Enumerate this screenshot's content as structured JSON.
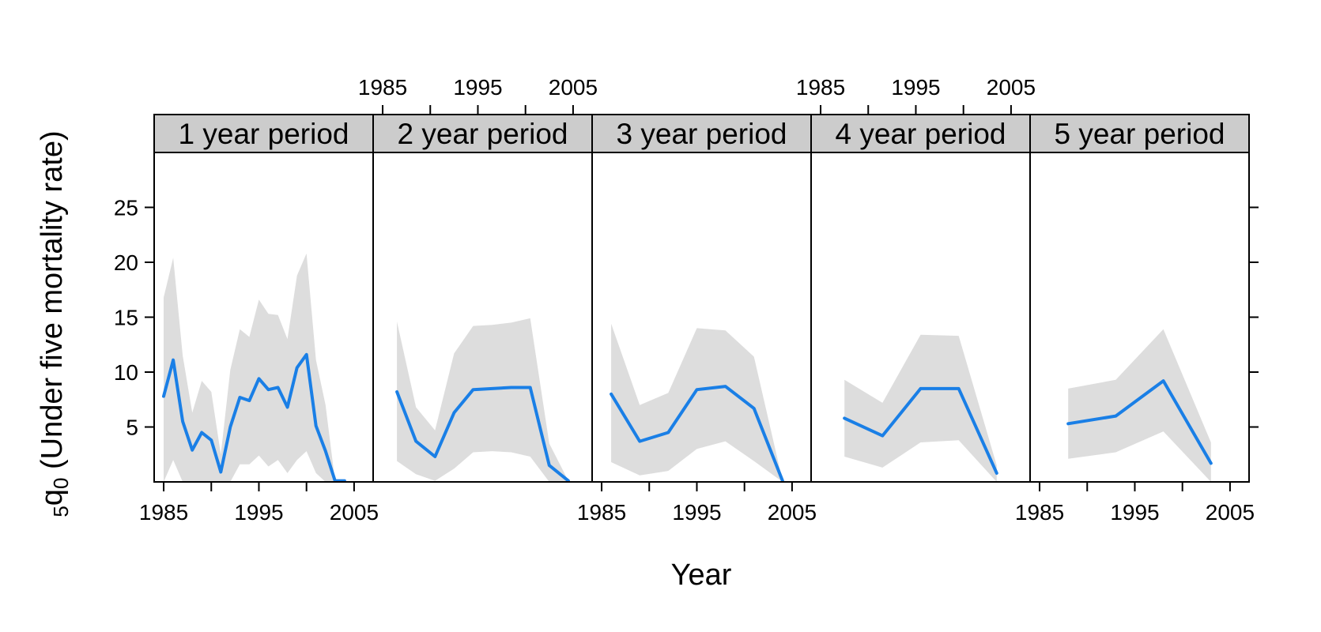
{
  "chart_data": {
    "type": "line",
    "xlabel": "Year",
    "ylabel": {
      "prefix_sub": "5",
      "main": "q",
      "main_sub": "0",
      "rest": " (Under five mortality rate)"
    },
    "xlim": [
      1984,
      2007
    ],
    "ylim": [
      0,
      30
    ],
    "xticks": [
      1985,
      1990,
      1995,
      2000,
      2005
    ],
    "xtick_labels": [
      "1985",
      "1995",
      "2005"
    ],
    "yticks": [
      5,
      10,
      15,
      20,
      25
    ],
    "line_color": "#1a7fe6",
    "band_color": "#dddddd",
    "strip_color": "#cccccc",
    "panels": [
      {
        "strip": "1 year period",
        "x": [
          1985,
          1986,
          1987,
          1988,
          1989,
          1990,
          1991,
          1992,
          1993,
          1994,
          1995,
          1996,
          1997,
          1998,
          1999,
          2000,
          2001,
          2002,
          2003,
          2004
        ],
        "y": [
          7.8,
          11.1,
          5.5,
          2.9,
          4.5,
          3.8,
          0.9,
          5.0,
          7.7,
          7.4,
          9.4,
          8.4,
          8.6,
          6.8,
          10.4,
          11.6,
          5.1,
          2.8,
          0.1,
          0.1
        ],
        "lower": [
          0,
          2,
          0,
          0,
          0,
          0,
          0,
          0,
          1.6,
          1.6,
          2.4,
          1.4,
          2.0,
          0.8,
          2.0,
          2.8,
          0.8,
          0,
          0,
          0
        ],
        "upper": [
          16.8,
          20.4,
          11.5,
          6.3,
          9.2,
          8.2,
          2.5,
          10.2,
          13.9,
          13.2,
          16.6,
          15.3,
          15.2,
          13.0,
          18.8,
          20.8,
          11.1,
          7.0,
          0.1,
          0.1
        ]
      },
      {
        "strip": "2 year period",
        "x": [
          1986.5,
          1988.5,
          1990.5,
          1992.5,
          1994.5,
          1996.5,
          1998.5,
          2000.5,
          2002.5,
          2004.5
        ],
        "y": [
          8.2,
          3.7,
          2.3,
          6.3,
          8.4,
          8.5,
          8.6,
          8.6,
          1.5,
          0.1
        ],
        "lower": [
          1.9,
          0.7,
          0.1,
          1.2,
          2.7,
          2.8,
          2.7,
          2.3,
          0,
          0
        ],
        "upper": [
          14.6,
          6.8,
          4.7,
          11.7,
          14.2,
          14.3,
          14.5,
          14.9,
          3.5,
          0.1
        ]
      },
      {
        "strip": "3 year period",
        "x": [
          1986,
          1989,
          1992,
          1995,
          1998,
          2001,
          2004
        ],
        "y": [
          8.0,
          3.7,
          4.5,
          8.4,
          8.7,
          6.7,
          0.1
        ],
        "lower": [
          1.8,
          0.6,
          1.0,
          3.0,
          3.7,
          1.9,
          0
        ],
        "upper": [
          14.4,
          7.0,
          8.1,
          14.0,
          13.8,
          11.4,
          0.1
        ]
      },
      {
        "strip": "4 year period",
        "x": [
          1987.5,
          1991.5,
          1995.5,
          1999.5,
          2003.5
        ],
        "y": [
          5.8,
          4.2,
          8.5,
          8.5,
          0.8
        ],
        "lower": [
          2.3,
          1.3,
          3.6,
          3.8,
          0
        ],
        "upper": [
          9.3,
          7.2,
          13.4,
          13.3,
          1.5
        ]
      },
      {
        "strip": "5 year period",
        "x": [
          1988,
          1993,
          1998,
          2003
        ],
        "y": [
          5.3,
          6.0,
          9.2,
          1.7
        ],
        "lower": [
          2.1,
          2.7,
          4.6,
          0
        ],
        "upper": [
          8.5,
          9.3,
          13.9,
          3.6
        ]
      }
    ]
  }
}
